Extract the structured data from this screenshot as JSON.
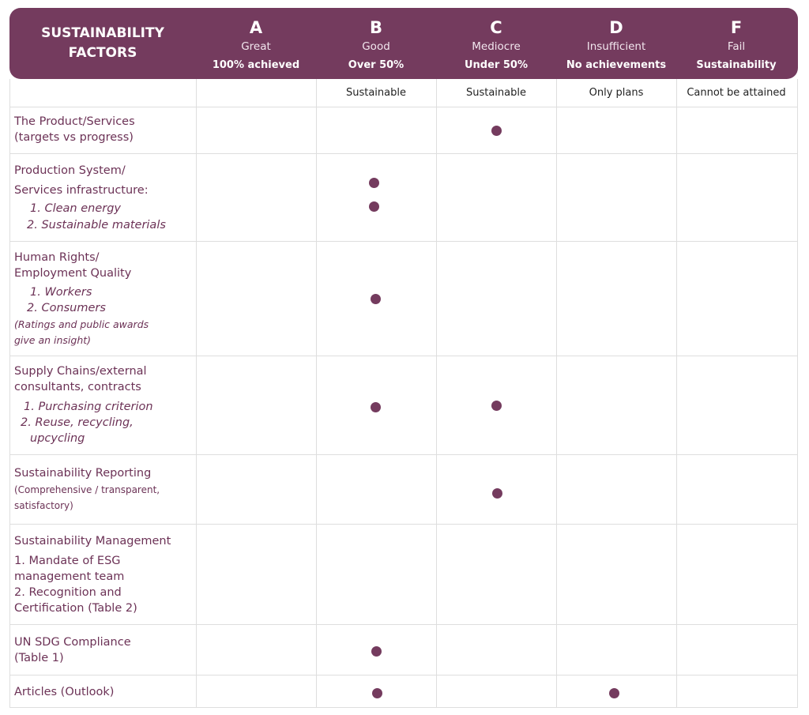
{
  "header": {
    "factors_label": "SUSTAINABILITY\nFACTORS",
    "grades": [
      {
        "letter": "A",
        "word": "Great",
        "note": "100% achieved",
        "sub": ""
      },
      {
        "letter": "B",
        "word": "Good",
        "note": "Over 50%",
        "sub": "Sustainable"
      },
      {
        "letter": "C",
        "word": "Mediocre",
        "note": "Under 50%",
        "sub": "Sustainable"
      },
      {
        "letter": "D",
        "word": "Insufficient",
        "note": "No achievements",
        "sub": "Only plans"
      },
      {
        "letter": "F",
        "word": "Fail",
        "note": "Sustainability",
        "sub": "Cannot be attained"
      }
    ]
  },
  "rows": [
    {
      "title": [
        "The Product/Services",
        "(targets vs progress)"
      ],
      "marks": [
        "C"
      ]
    },
    {
      "title": [
        "Production System/",
        "Services infrastructure:"
      ],
      "items": [
        "1. Clean energy",
        "2. Sustainable materials"
      ],
      "marks": [
        "B",
        "B"
      ]
    },
    {
      "title": [
        "Human Rights/",
        "Employment Quality"
      ],
      "items": [
        "1. Workers",
        "2. Consumers"
      ],
      "note": [
        "(Ratings and public awards",
        "give an insight)"
      ],
      "marks": [
        "B"
      ]
    },
    {
      "title": [
        "Supply Chains/external",
        "consultants, contracts"
      ],
      "items": [
        "1. Purchasing  criterion",
        "2. Reuse, recycling,",
        "upcycling"
      ],
      "marks": [
        "B",
        "C"
      ]
    },
    {
      "title": [
        "Sustainability Reporting"
      ],
      "note": [
        "(Comprehensive / transparent,",
        "satisfactory)"
      ],
      "marks": [
        "C"
      ]
    },
    {
      "title": [
        "Sustainability Management"
      ],
      "lines": [
        "1. Mandate of ESG",
        "management team",
        "2. Recognition and",
        "Certification (Table 2)"
      ],
      "marks": []
    },
    {
      "title": [
        "UN SDG Compliance",
        "(Table 1)"
      ],
      "marks": [
        "B"
      ]
    },
    {
      "title": [
        "Articles (Outlook)"
      ],
      "marks": [
        "B",
        "D"
      ]
    }
  ],
  "colors": {
    "accent": "#743b5e",
    "factor_text": "#6c3256",
    "grid": "#dedede"
  }
}
